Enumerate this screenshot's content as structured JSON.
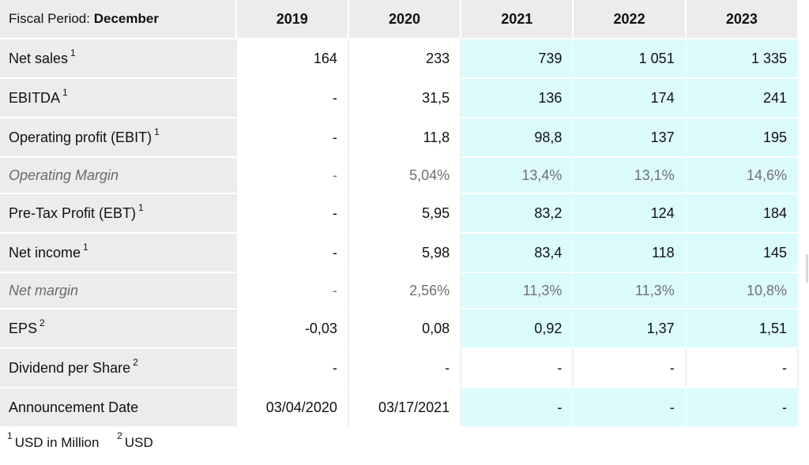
{
  "header": {
    "period_label": "Fiscal Period:",
    "period_value": "December",
    "years": [
      "2019",
      "2020",
      "2021",
      "2022",
      "2023"
    ]
  },
  "rows": [
    {
      "label": "Net sales",
      "sup": "1",
      "values": [
        "164",
        "233",
        "739",
        "1 051",
        "1 335"
      ]
    },
    {
      "label": "EBITDA",
      "sup": "1",
      "values": [
        "-",
        "31,5",
        "136",
        "174",
        "241"
      ]
    },
    {
      "label": "Operating profit (EBIT)",
      "sup": "1",
      "values": [
        "-",
        "11,8",
        "98,8",
        "137",
        "195"
      ]
    },
    {
      "label": "Operating Margin",
      "sup": "",
      "values": [
        "-",
        "5,04%",
        "13,4%",
        "13,1%",
        "14,6%"
      ]
    },
    {
      "label": "Pre-Tax Profit (EBT)",
      "sup": "1",
      "values": [
        "-",
        "5,95",
        "83,2",
        "124",
        "184"
      ]
    },
    {
      "label": "Net income",
      "sup": "1",
      "values": [
        "-",
        "5,98",
        "83,4",
        "118",
        "145"
      ]
    },
    {
      "label": "Net margin",
      "sup": "",
      "values": [
        "-",
        "2,56%",
        "11,3%",
        "11,3%",
        "10,8%"
      ]
    },
    {
      "label": "EPS",
      "sup": "2",
      "values": [
        "-0,03",
        "0,08",
        "0,92",
        "1,37",
        "1,51"
      ]
    },
    {
      "label": "Dividend per Share",
      "sup": "2",
      "values": [
        "-",
        "-",
        "-",
        "-",
        "-"
      ]
    },
    {
      "label": "Announcement Date",
      "sup": "",
      "values": [
        "03/04/2020",
        "03/17/2021",
        "-",
        "-",
        "-"
      ]
    }
  ],
  "footnotes": [
    {
      "mark": "1",
      "text": "USD in Million"
    },
    {
      "mark": "2",
      "text": "USD"
    }
  ],
  "colors": {
    "label_bg": "#ececec",
    "estimate_bg": "#dcfbfd",
    "muted_text": "#6b6b6b"
  }
}
